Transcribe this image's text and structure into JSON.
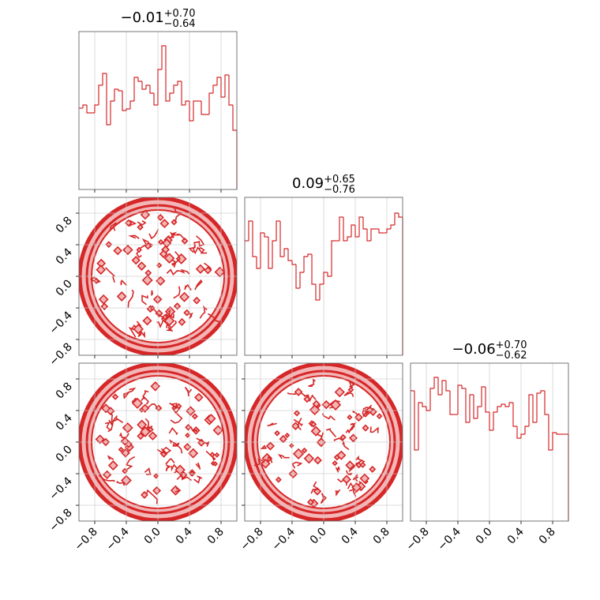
{
  "chart_data": [
    {
      "type": "histogram",
      "title": "−0.01",
      "title_upper": "+0.70",
      "title_lower": "−0.64",
      "color": "#d62728",
      "grid": true,
      "bins": [
        -1,
        -0.95,
        -0.9,
        -0.85,
        -0.8,
        -0.75,
        -0.7,
        -0.65,
        -0.6,
        -0.55,
        -0.5,
        -0.45,
        -0.4,
        -0.35,
        -0.3,
        -0.25,
        -0.2,
        -0.15,
        -0.1,
        -0.05,
        0,
        0.05,
        0.1,
        0.15,
        0.2,
        0.25,
        0.3,
        0.35,
        0.4,
        0.45,
        0.5,
        0.55,
        0.6,
        0.65,
        0.7,
        0.75,
        0.8,
        0.85,
        0.9,
        0.95,
        1
      ],
      "values": [
        103,
        107,
        97,
        97,
        107,
        132,
        147,
        82,
        112,
        127,
        125,
        100,
        102,
        112,
        142,
        137,
        127,
        132,
        122,
        107,
        152,
        182,
        112,
        122,
        132,
        137,
        107,
        112,
        87,
        112,
        112,
        95,
        95,
        122,
        132,
        142,
        117,
        145,
        107,
        75
      ],
      "xlim": [
        -1,
        1
      ],
      "ylim": [
        0,
        200
      ],
      "xticks": [
        {
          "value": -0.8,
          "label": "−0.8"
        },
        {
          "value": -0.4,
          "label": "−0.4"
        },
        {
          "value": 0,
          "label": "0.0"
        },
        0.4,
        0.8
      ]
    },
    {
      "type": "histogram",
      "title": "0.09",
      "title_upper": "+0.65",
      "title_lower": "−0.76",
      "color": "#d62728",
      "grid": true,
      "bins": [
        -1,
        -0.95,
        -0.9,
        -0.85,
        -0.8,
        -0.75,
        -0.7,
        -0.65,
        -0.6,
        -0.55,
        -0.5,
        -0.45,
        -0.4,
        -0.35,
        -0.3,
        -0.25,
        -0.2,
        -0.15,
        -0.1,
        -0.05,
        0,
        0.05,
        0.1,
        0.15,
        0.2,
        0.25,
        0.3,
        0.35,
        0.4,
        0.45,
        0.5,
        0.55,
        0.6,
        0.65,
        0.7,
        0.75,
        0.8,
        0.85,
        0.9,
        0.95,
        1
      ],
      "values": [
        145,
        170,
        125,
        110,
        155,
        150,
        110,
        145,
        170,
        125,
        135,
        120,
        115,
        85,
        105,
        125,
        128,
        90,
        70,
        90,
        105,
        100,
        145,
        145,
        175,
        145,
        150,
        165,
        150,
        175,
        160,
        145,
        160,
        160,
        155,
        155,
        160,
        165,
        180,
        175
      ],
      "xlim": [
        -1,
        1
      ],
      "ylim": [
        0,
        200
      ],
      "xticks": [
        {
          "value": -0.8,
          "label": "−0.8"
        },
        {
          "value": -0.4,
          "label": "−0.4"
        },
        {
          "value": 0,
          "label": "0.0"
        },
        0.4,
        0.8
      ]
    },
    {
      "type": "histogram",
      "title": "−0.06",
      "title_upper": "+0.70",
      "title_lower": "−0.62",
      "color": "#d62728",
      "grid": true,
      "bins": [
        -1,
        -0.95,
        -0.9,
        -0.85,
        -0.8,
        -0.75,
        -0.7,
        -0.65,
        -0.6,
        -0.55,
        -0.5,
        -0.45,
        -0.4,
        -0.35,
        -0.3,
        -0.25,
        -0.2,
        -0.15,
        -0.1,
        -0.05,
        0,
        0.05,
        0.1,
        0.15,
        0.2,
        0.25,
        0.3,
        0.35,
        0.4,
        0.45,
        0.5,
        0.55,
        0.6,
        0.65,
        0.7,
        0.75,
        0.8,
        0.85,
        0.9,
        0.95,
        1
      ],
      "values": [
        165,
        90,
        150,
        145,
        140,
        168,
        182,
        160,
        178,
        165,
        135,
        135,
        172,
        168,
        125,
        160,
        130,
        145,
        170,
        138,
        115,
        138,
        145,
        148,
        145,
        150,
        120,
        105,
        110,
        120,
        160,
        125,
        162,
        165,
        135,
        90,
        112,
        110,
        110,
        110
      ],
      "xlim": [
        -1,
        1
      ],
      "ylim": [
        0,
        200
      ],
      "xticks": [
        {
          "value": -0.8,
          "label": "−0.8"
        },
        {
          "value": -0.4,
          "label": "−0.4"
        },
        {
          "value": 0,
          "label": "0.0"
        },
        0.4,
        0.8
      ]
    },
    {
      "type": "contour",
      "color": "#d62728",
      "grid": true,
      "xlim": [
        -1,
        1
      ],
      "ylim": [
        -1,
        1
      ],
      "xticks": [
        {
          "value": -0.8,
          "label": "−0.8"
        },
        {
          "value": -0.4,
          "label": "−0.4"
        },
        {
          "value": 0,
          "label": "0.0"
        },
        0.4,
        0.8
      ],
      "yticks": [
        {
          "value": -0.8,
          "label": "−0.8"
        },
        {
          "value": -0.4,
          "label": "−0.4"
        },
        {
          "value": 0,
          "label": "0.0"
        },
        0.4,
        0.8
      ]
    },
    {
      "type": "contour",
      "color": "#d62728",
      "grid": true,
      "xlim": [
        -1,
        1
      ],
      "ylim": [
        -1,
        1
      ],
      "xticks": [
        {
          "value": -0.8,
          "label": "−0.8"
        },
        {
          "value": -0.4,
          "label": "−0.4"
        },
        {
          "value": 0,
          "label": "0.0"
        },
        0.4,
        0.8
      ],
      "yticks": [
        {
          "value": -0.8,
          "label": "−0.8"
        },
        {
          "value": -0.4,
          "label": "−0.4"
        },
        {
          "value": 0,
          "label": "0.0"
        },
        0.4,
        0.8
      ]
    },
    {
      "type": "contour",
      "color": "#d62728",
      "grid": true,
      "xlim": [
        -1,
        1
      ],
      "ylim": [
        -1,
        1
      ],
      "xticks": [
        {
          "value": -0.8,
          "label": "−0.8"
        },
        {
          "value": -0.4,
          "label": "−0.4"
        },
        {
          "value": 0,
          "label": "0.0"
        },
        0.4,
        0.8
      ],
      "yticks": [
        {
          "value": -0.8,
          "label": "−0.8"
        },
        {
          "value": -0.4,
          "label": "−0.4"
        },
        {
          "value": 0,
          "label": "0.0"
        },
        0.4,
        0.8
      ]
    }
  ]
}
